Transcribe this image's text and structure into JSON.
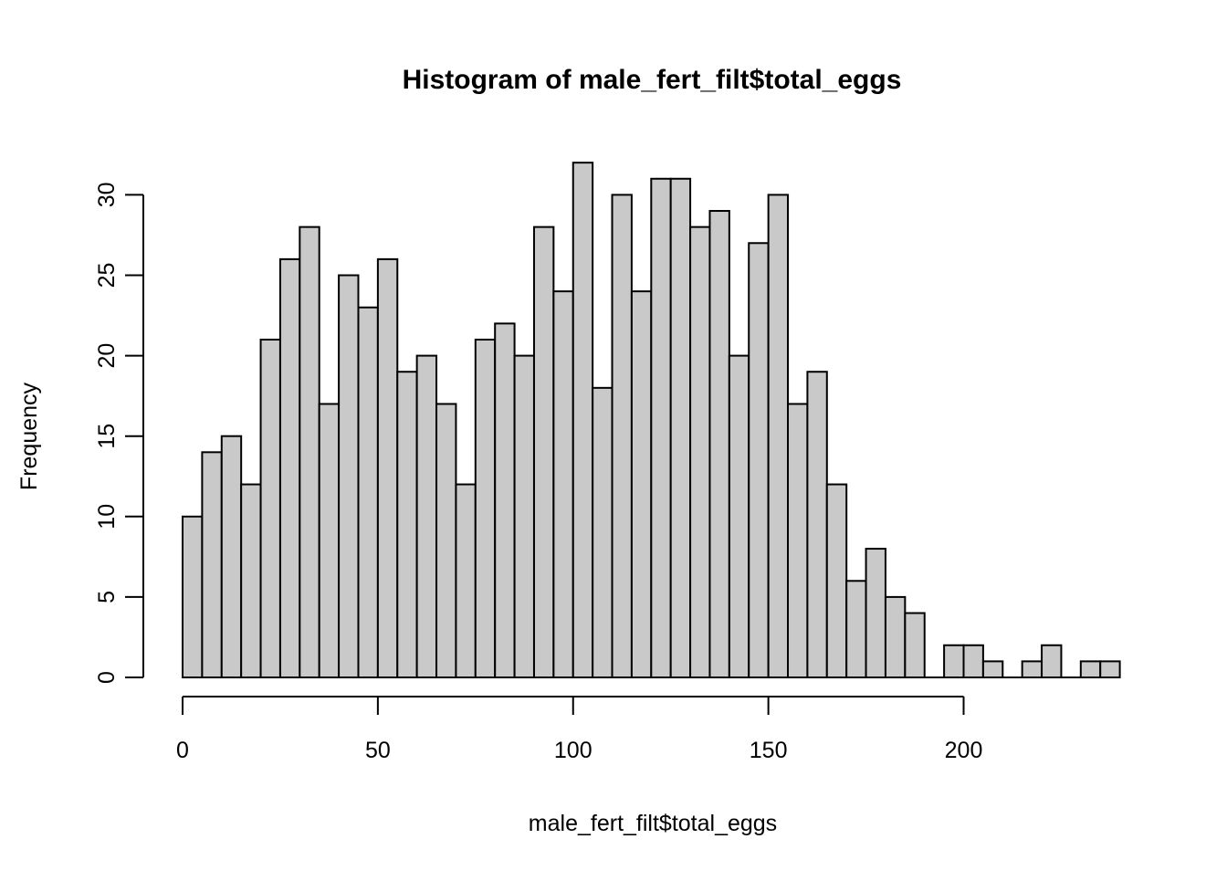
{
  "figure": {
    "background": "#FFFFFF"
  },
  "chart_data": {
    "type": "bar",
    "subtype": "histogram",
    "title": "Histogram of male_fert_filt$total_eggs",
    "xlabel": "male_fert_filt$total_eggs",
    "ylabel": "Frequency",
    "bin_start": 0,
    "bin_width": 5,
    "counts": [
      10,
      14,
      15,
      12,
      21,
      26,
      28,
      17,
      25,
      23,
      26,
      19,
      20,
      17,
      12,
      21,
      22,
      20,
      28,
      24,
      32,
      18,
      30,
      24,
      31,
      31,
      28,
      29,
      20,
      27,
      30,
      17,
      19,
      12,
      6,
      8,
      5,
      4,
      0,
      2,
      2,
      1,
      0,
      1,
      2,
      0,
      1,
      1
    ],
    "xticks": [
      0,
      50,
      100,
      150,
      200
    ],
    "yticks": [
      0,
      5,
      10,
      15,
      20,
      25,
      30
    ],
    "xlim": [
      0,
      200
    ],
    "ylim": [
      0,
      30
    ],
    "grid": "off",
    "legend": "none",
    "bar_fill": "#C9C9C9",
    "bar_stroke": "#000000",
    "axis_color": "#000000"
  }
}
